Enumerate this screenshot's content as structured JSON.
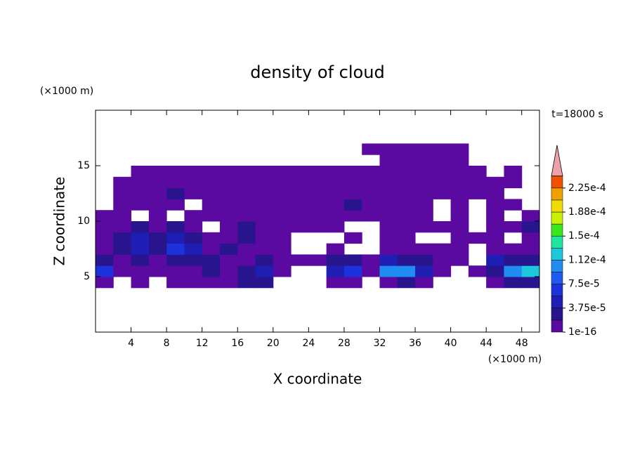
{
  "chart_data": {
    "type": "contour",
    "title": "density of cloud",
    "x_label": "X coordinate",
    "y_label": "Z coordinate",
    "x_unit": "(×1000 m)",
    "y_unit": "(×1000 m)",
    "time_label": "t=18000 s",
    "xlim": [
      0,
      50
    ],
    "ylim": [
      0,
      20
    ],
    "xticks": [
      4,
      8,
      12,
      16,
      20,
      24,
      28,
      32,
      36,
      40,
      44,
      48
    ],
    "yticks": [
      5,
      10,
      15
    ],
    "x": [
      1,
      3,
      5,
      7,
      9,
      11,
      13,
      15,
      17,
      19,
      21,
      23,
      25,
      27,
      29,
      31,
      33,
      35,
      37,
      39,
      41,
      43,
      45,
      47,
      49
    ],
    "y": [
      4.5,
      5.5,
      6.5,
      7.5,
      8.5,
      9.5,
      10.5,
      11.5,
      12.5,
      13.5,
      14.5,
      15.5,
      16.5
    ],
    "z": [
      [
        5e-06,
        null,
        5e-06,
        null,
        5e-06,
        5e-06,
        5e-06,
        5e-06,
        2.5e-05,
        2.5e-05,
        null,
        null,
        null,
        5e-06,
        5e-06,
        null,
        5e-06,
        2.5e-05,
        5e-06,
        null,
        null,
        null,
        5e-06,
        2.5e-05,
        2.5e-05
      ],
      [
        7e-05,
        5e-06,
        5e-06,
        5e-06,
        5e-06,
        5e-06,
        2.5e-05,
        5e-06,
        2.5e-05,
        4.5e-05,
        5e-06,
        null,
        null,
        4.5e-05,
        7e-05,
        5e-06,
        0.00011,
        0.00011,
        4.5e-05,
        5e-06,
        null,
        5e-06,
        2.5e-05,
        0.00011,
        0.00013
      ],
      [
        2.5e-05,
        5e-06,
        2.5e-05,
        5e-06,
        2.5e-05,
        2.5e-05,
        2.5e-05,
        5e-06,
        5e-06,
        2.5e-05,
        5e-06,
        5e-06,
        5e-06,
        2.5e-05,
        2.5e-05,
        5e-06,
        4.5e-05,
        2.5e-05,
        2.5e-05,
        5e-06,
        5e-06,
        null,
        4.5e-05,
        2.5e-05,
        2.5e-05
      ],
      [
        5e-06,
        2.5e-05,
        4.5e-05,
        2.5e-05,
        7e-05,
        4.5e-05,
        5e-06,
        2.5e-05,
        5e-06,
        5e-06,
        5e-06,
        null,
        null,
        5e-06,
        null,
        null,
        5e-06,
        5e-06,
        5e-06,
        5e-06,
        5e-06,
        null,
        5e-06,
        5e-06,
        5e-06
      ],
      [
        5e-06,
        2.5e-05,
        4.5e-05,
        2.5e-05,
        4.5e-05,
        2.5e-05,
        5e-06,
        5e-06,
        2.5e-05,
        5e-06,
        5e-06,
        null,
        null,
        null,
        5e-06,
        null,
        5e-06,
        5e-06,
        null,
        null,
        5e-06,
        5e-06,
        5e-06,
        null,
        5e-06
      ],
      [
        5e-06,
        5e-06,
        2.5e-05,
        5e-06,
        2.5e-05,
        5e-06,
        null,
        5e-06,
        2.5e-05,
        5e-06,
        5e-06,
        5e-06,
        5e-06,
        5e-06,
        null,
        null,
        5e-06,
        5e-06,
        5e-06,
        5e-06,
        5e-06,
        null,
        5e-06,
        5e-06,
        2.5e-05
      ],
      [
        5e-06,
        5e-06,
        null,
        5e-06,
        null,
        5e-06,
        5e-06,
        5e-06,
        5e-06,
        5e-06,
        5e-06,
        5e-06,
        5e-06,
        5e-06,
        5e-06,
        5e-06,
        5e-06,
        5e-06,
        5e-06,
        null,
        5e-06,
        null,
        5e-06,
        null,
        5e-06
      ],
      [
        null,
        5e-06,
        5e-06,
        5e-06,
        5e-06,
        null,
        5e-06,
        5e-06,
        5e-06,
        5e-06,
        5e-06,
        5e-06,
        5e-06,
        5e-06,
        2.5e-05,
        5e-06,
        5e-06,
        5e-06,
        5e-06,
        null,
        5e-06,
        null,
        5e-06,
        5e-06,
        null
      ],
      [
        null,
        5e-06,
        5e-06,
        5e-06,
        2.5e-05,
        5e-06,
        5e-06,
        5e-06,
        5e-06,
        5e-06,
        5e-06,
        5e-06,
        5e-06,
        5e-06,
        5e-06,
        5e-06,
        5e-06,
        5e-06,
        5e-06,
        5e-06,
        5e-06,
        5e-06,
        5e-06,
        null,
        null
      ],
      [
        null,
        5e-06,
        5e-06,
        5e-06,
        5e-06,
        5e-06,
        5e-06,
        5e-06,
        5e-06,
        5e-06,
        5e-06,
        5e-06,
        5e-06,
        5e-06,
        5e-06,
        5e-06,
        5e-06,
        5e-06,
        5e-06,
        5e-06,
        5e-06,
        5e-06,
        5e-06,
        5e-06,
        null
      ],
      [
        null,
        null,
        5e-06,
        5e-06,
        5e-06,
        5e-06,
        5e-06,
        5e-06,
        5e-06,
        5e-06,
        5e-06,
        5e-06,
        5e-06,
        5e-06,
        5e-06,
        5e-06,
        5e-06,
        5e-06,
        5e-06,
        5e-06,
        5e-06,
        5e-06,
        null,
        5e-06,
        null
      ],
      [
        null,
        null,
        null,
        null,
        null,
        null,
        null,
        null,
        null,
        null,
        null,
        null,
        null,
        null,
        null,
        null,
        5e-06,
        5e-06,
        5e-06,
        5e-06,
        5e-06,
        null,
        null,
        null,
        null
      ],
      [
        null,
        null,
        null,
        null,
        null,
        null,
        null,
        null,
        null,
        null,
        null,
        null,
        null,
        null,
        null,
        5e-06,
        5e-06,
        5e-06,
        5e-06,
        5e-06,
        5e-06,
        null,
        null,
        null,
        null
      ]
    ],
    "colorbar": {
      "levels": [
        1e-16,
        1.875e-05,
        3.75e-05,
        5.625e-05,
        7.5e-05,
        9.375e-05,
        0.0001125,
        0.00013125,
        0.00015,
        0.00016875,
        0.0001875,
        0.00020625,
        0.000225,
        0.00024375
      ],
      "colors": [
        "#5a0aa0",
        "#28148c",
        "#1e1eb4",
        "#1e32dc",
        "#1e5af0",
        "#1e8cf0",
        "#1ec8dc",
        "#1ee6a0",
        "#3ce61e",
        "#c8f000",
        "#f0dc00",
        "#f0a000",
        "#f05000"
      ],
      "extend_color": "#f0a0a8",
      "ticks": [
        1e-16,
        {
          "value": 3.75e-05,
          "label": "3.75e-5"
        },
        {
          "value": 7.5e-05,
          "label": "7.5e-5"
        },
        {
          "value": 0.0001125,
          "label": "1.12e-4"
        },
        {
          "value": 0.00015,
          "label": "1.5e-4"
        },
        {
          "value": 0.0001875,
          "label": "1.88e-4"
        },
        {
          "value": 0.000225,
          "label": "2.25e-4"
        }
      ]
    }
  }
}
